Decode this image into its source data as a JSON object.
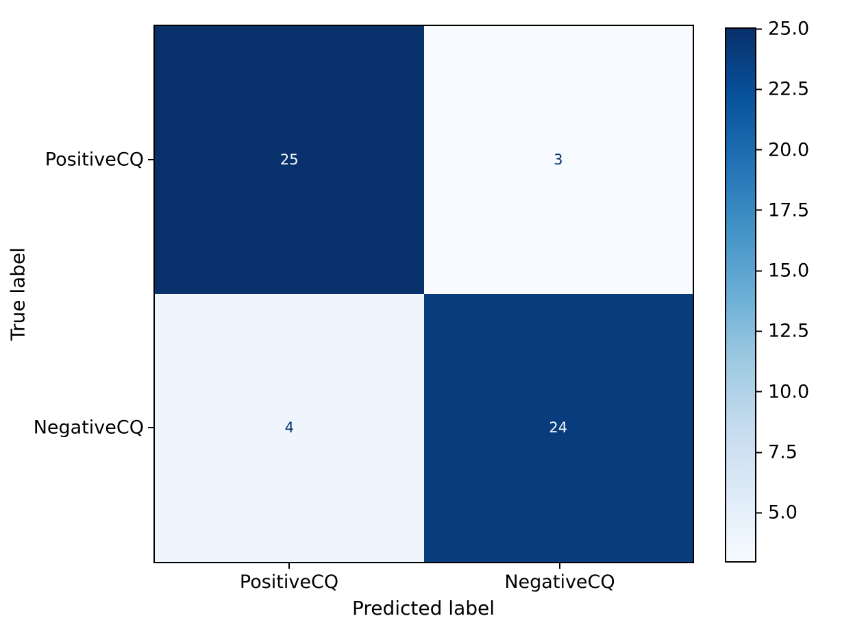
{
  "chart_data": {
    "type": "heatmap",
    "subtype": "confusion_matrix",
    "title": "",
    "xlabel": "Predicted label",
    "ylabel": "True label",
    "x_categories": [
      "PositiveCQ",
      "NegativeCQ"
    ],
    "y_categories": [
      "PositiveCQ",
      "NegativeCQ"
    ],
    "matrix": [
      [
        25,
        3
      ],
      [
        4,
        24
      ]
    ],
    "vmin": 3,
    "vmax": 25,
    "colormap": "Blues",
    "grid": false,
    "legend_position": "colorbar-right",
    "colorbar_ticks": [
      "25.0",
      "22.5",
      "20.0",
      "17.5",
      "15.0",
      "12.5",
      "10.0",
      "7.5",
      "5.0"
    ],
    "colorbar_gradient": [
      "#f7fbff 0%",
      "#deebf7 12.5%",
      "#c6dbef 25%",
      "#9ecae1 37.5%",
      "#6baed6 50%",
      "#4292c6 62.5%",
      "#2171b5 75%",
      "#08519c 87.5%",
      "#08306b 100%"
    ],
    "cell_colors": [
      [
        "#08306b",
        "#f7fbff"
      ],
      [
        "#eef5fc",
        "#083c7d"
      ]
    ],
    "cell_text_colors": [
      [
        "#f7fbff",
        "#08306b"
      ],
      [
        "#08306b",
        "#f7fbff"
      ]
    ],
    "axes_border_color": "#000000",
    "text_color": "#000000",
    "background_color": "#ffffff"
  }
}
